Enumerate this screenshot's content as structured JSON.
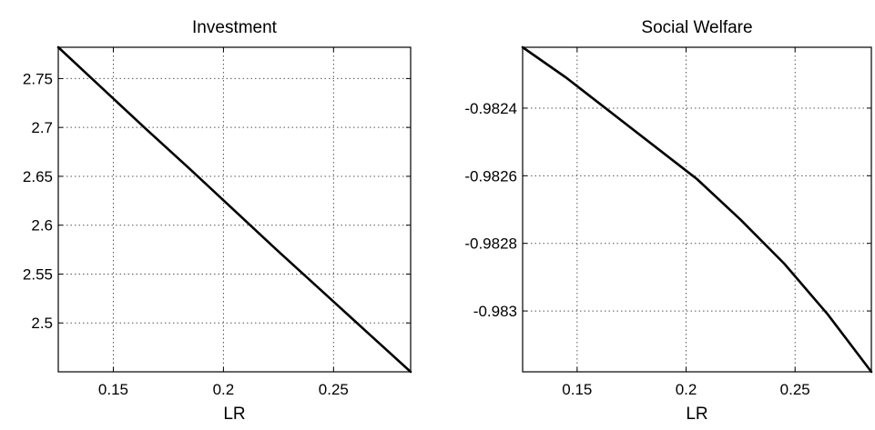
{
  "chart_data": [
    {
      "type": "line",
      "title": "Investment",
      "xlabel": "LR",
      "ylabel": "",
      "xlim": [
        0.125,
        0.285
      ],
      "ylim": [
        2.45,
        2.782
      ],
      "xticks": [
        0.15,
        0.2,
        0.25
      ],
      "xtick_labels": [
        "0.15",
        "0.2",
        "0.25"
      ],
      "yticks": [
        2.5,
        2.55,
        2.6,
        2.65,
        2.7,
        2.75
      ],
      "ytick_labels": [
        "2.5",
        "2.55",
        "2.6",
        "2.65",
        "2.7",
        "2.75"
      ],
      "grid": true,
      "series": [
        {
          "x": [
            0.125,
            0.145,
            0.165,
            0.185,
            0.205,
            0.225,
            0.245,
            0.265,
            0.285
          ],
          "y": [
            2.782,
            2.74,
            2.698,
            2.657,
            2.615,
            2.573,
            2.532,
            2.491,
            2.45
          ]
        }
      ]
    },
    {
      "type": "line",
      "title": "Social Welfare",
      "xlabel": "LR",
      "ylabel": "",
      "xlim": [
        0.125,
        0.285
      ],
      "ylim": [
        -0.98318,
        -0.98222
      ],
      "xticks": [
        0.15,
        0.2,
        0.25
      ],
      "xtick_labels": [
        "0.15",
        "0.2",
        "0.25"
      ],
      "yticks": [
        -0.9824,
        -0.9826,
        -0.9828,
        -0.983
      ],
      "ytick_labels": [
        "-0.9824",
        "-0.9826",
        "-0.9828",
        "-0.983"
      ],
      "grid": true,
      "series": [
        {
          "x": [
            0.125,
            0.145,
            0.165,
            0.185,
            0.205,
            0.225,
            0.245,
            0.265,
            0.285
          ],
          "y": [
            -0.98222,
            -0.98231,
            -0.98241,
            -0.98251,
            -0.98261,
            -0.98273,
            -0.98286,
            -0.98301,
            -0.98318
          ]
        }
      ]
    }
  ]
}
